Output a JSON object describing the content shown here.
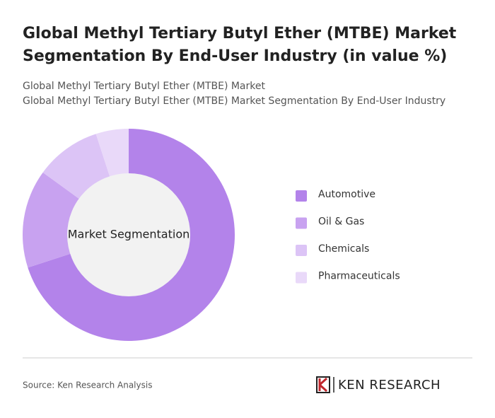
{
  "chart_data": {
    "type": "pie",
    "donut": true,
    "title": [
      "Global Methyl Tertiary Butyl Ether (MTBE) Market",
      "Segmentation By End-User Industry (in value %)"
    ],
    "subtitle": [
      "Global Methyl Tertiary Butyl Ether (MTBE) Market",
      "Global Methyl Tertiary Butyl Ether (MTBE) Market Segmentation By End-User Industry"
    ],
    "center_label": "Market Segmentation",
    "categories": [
      "Automotive",
      "Oil & Gas",
      "Chemicals",
      "Pharmaceuticals"
    ],
    "values": [
      70,
      15,
      10,
      5
    ],
    "colors": [
      "#b383ea",
      "#c8a2f0",
      "#dcc4f6",
      "#e9d9f9"
    ],
    "source": "Source: Ken Research Analysis",
    "logo": "KEN RESEARCH"
  }
}
